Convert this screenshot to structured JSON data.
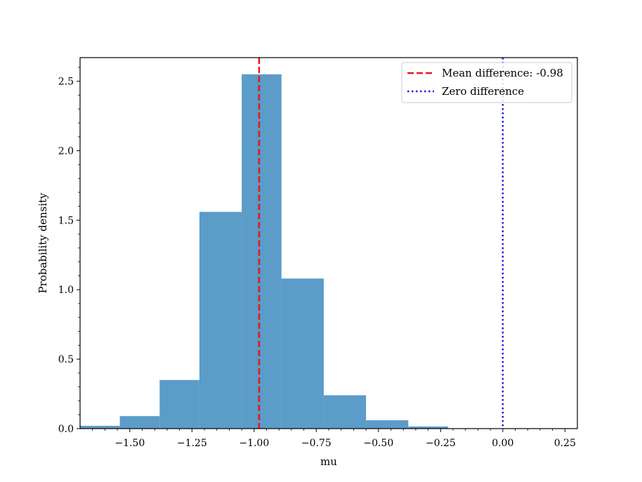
{
  "chart_data": {
    "type": "histogram",
    "title": "",
    "xlabel": "mu",
    "ylabel": "Probability density",
    "xlim": [
      -1.7,
      0.3
    ],
    "ylim": [
      0,
      2.67
    ],
    "xticks": [
      -1.5,
      -1.25,
      -1.0,
      -0.75,
      -0.5,
      -0.25,
      0.0,
      0.25
    ],
    "xtick_labels": [
      "−1.50",
      "−1.25",
      "−1.00",
      "−0.75",
      "−0.50",
      "−0.25",
      "0.00",
      "0.25"
    ],
    "yticks": [
      0.0,
      0.5,
      1.0,
      1.5,
      2.0,
      2.5
    ],
    "ytick_labels": [
      "0.0",
      "0.5",
      "1.0",
      "1.5",
      "2.0",
      "2.5"
    ],
    "grid": false,
    "bar_color": "#5b9cc9",
    "bins": [
      {
        "x0": -1.7,
        "x1": -1.54,
        "density": 0.02
      },
      {
        "x0": -1.54,
        "x1": -1.38,
        "density": 0.09
      },
      {
        "x0": -1.38,
        "x1": -1.22,
        "density": 0.35
      },
      {
        "x0": -1.22,
        "x1": -1.05,
        "density": 1.56
      },
      {
        "x0": -1.05,
        "x1": -0.89,
        "density": 2.55
      },
      {
        "x0": -0.89,
        "x1": -0.72,
        "density": 1.08
      },
      {
        "x0": -0.72,
        "x1": -0.55,
        "density": 0.24
      },
      {
        "x0": -0.55,
        "x1": -0.38,
        "density": 0.06
      },
      {
        "x0": -0.38,
        "x1": -0.22,
        "density": 0.015
      }
    ],
    "reference_lines": [
      {
        "name": "mean-line",
        "x": -0.98,
        "color": "#e8141b",
        "style": "dashed",
        "label": "Mean difference: -0.98"
      },
      {
        "name": "zero-line",
        "x": 0.0,
        "color": "#1f1fe6",
        "style": "dotted",
        "label": "Zero difference"
      }
    ],
    "legend_position": "top-right"
  }
}
